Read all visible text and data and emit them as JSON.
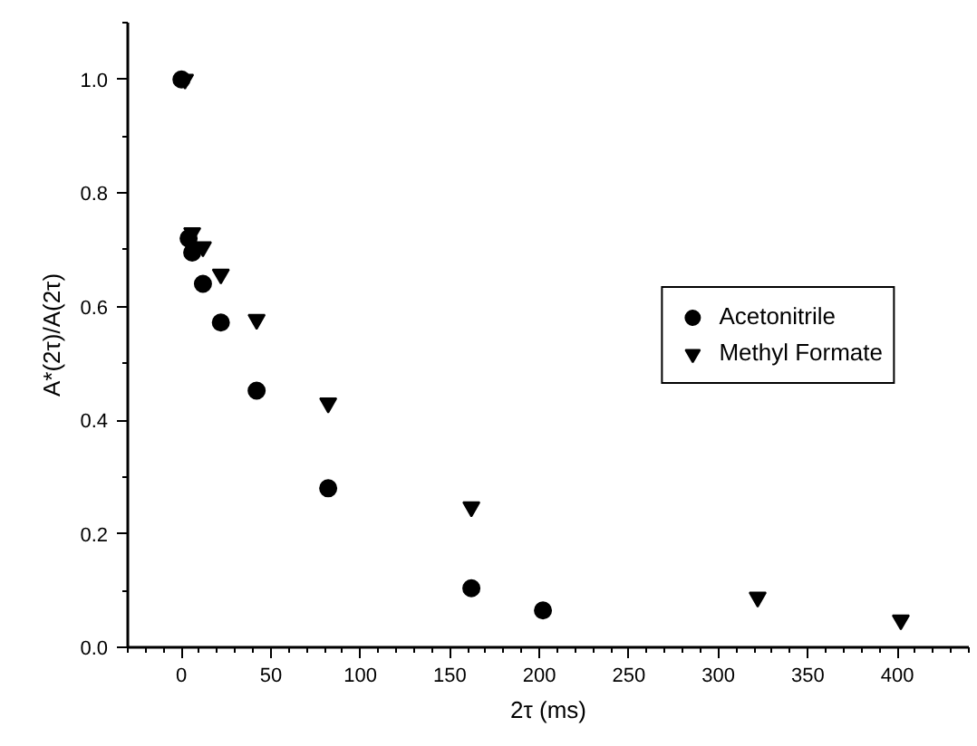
{
  "chart_data": {
    "type": "scatter",
    "xlabel": "2τ (ms)",
    "ylabel": "A*(2τ)/A(2τ)",
    "xlim": [
      -30,
      440
    ],
    "xticks": [
      0,
      50,
      100,
      150,
      200,
      250,
      300,
      350,
      400
    ],
    "ylim": [
      0,
      1.1
    ],
    "yticks": [
      {
        "value": 0,
        "label": "0.0"
      },
      0.2,
      0.4,
      0.6,
      0.8,
      {
        "value": 1,
        "label": "1.0"
      }
    ],
    "grid": false,
    "legend": "right",
    "series": [
      {
        "name": "Acetonitrile",
        "color": "#000000",
        "marker": "circle",
        "x": [
          0,
          4,
          6,
          12,
          22,
          42,
          82,
          162,
          202
        ],
        "values": [
          1.0,
          0.72,
          0.695,
          0.64,
          0.572,
          0.452,
          0.28,
          0.104,
          0.065
        ]
      },
      {
        "name": "Methyl Formate",
        "color": "#000000",
        "marker": "triangle",
        "x": [
          2,
          6,
          12,
          22,
          42,
          82,
          162,
          322,
          402
        ],
        "values": [
          1.0,
          0.73,
          0.705,
          0.657,
          0.577,
          0.43,
          0.247,
          0.088,
          0.048
        ]
      }
    ]
  }
}
